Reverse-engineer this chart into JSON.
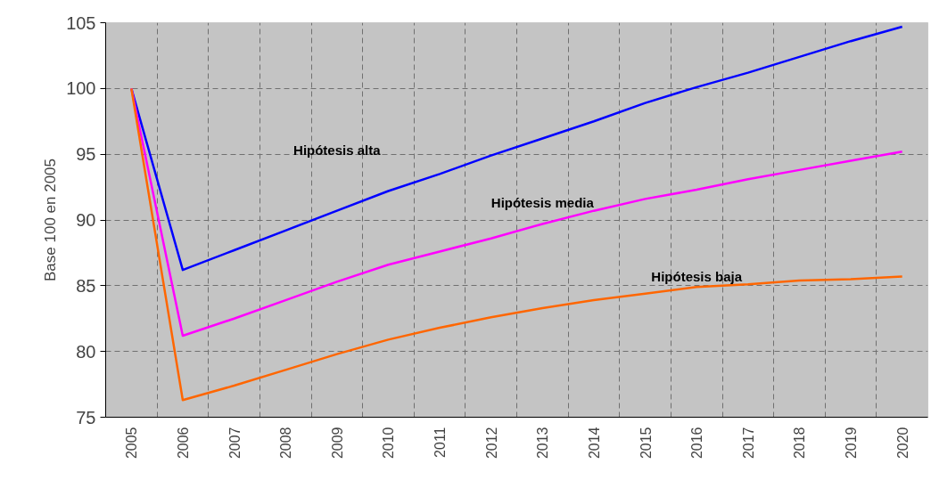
{
  "chart_data": {
    "type": "line",
    "ylabel": "Base 100 en 2005",
    "categories": [
      "2005",
      "2006",
      "2007",
      "2008",
      "2009",
      "2010",
      "2011",
      "2012",
      "2013",
      "2014",
      "2015",
      "2016",
      "2017",
      "2018",
      "2019",
      "2020"
    ],
    "ylim": [
      75,
      105
    ],
    "yticks": [
      75,
      80,
      85,
      90,
      95,
      100,
      105
    ],
    "grid": true,
    "marker": "none",
    "line_style": "solid",
    "series": [
      {
        "name": "Hipótesis alta",
        "color": "#0000ff",
        "values": [
          100,
          86.2,
          87.7,
          89.2,
          90.7,
          92.2,
          93.5,
          94.9,
          96.2,
          97.5,
          98.9,
          100.1,
          101.2,
          102.4,
          103.6,
          104.7
        ]
      },
      {
        "name": "Hipótesis media",
        "color": "#ff00ff",
        "values": [
          100,
          81.2,
          82.5,
          83.9,
          85.3,
          86.6,
          87.6,
          88.6,
          89.7,
          90.7,
          91.6,
          92.3,
          93.1,
          93.8,
          94.5,
          95.2
        ]
      },
      {
        "name": "Hipótesis baja",
        "color": "#ff6600",
        "values": [
          100,
          76.3,
          77.4,
          78.6,
          79.8,
          80.9,
          81.8,
          82.6,
          83.3,
          83.9,
          84.4,
          84.9,
          85.1,
          85.4,
          85.5,
          85.7
        ]
      }
    ]
  }
}
